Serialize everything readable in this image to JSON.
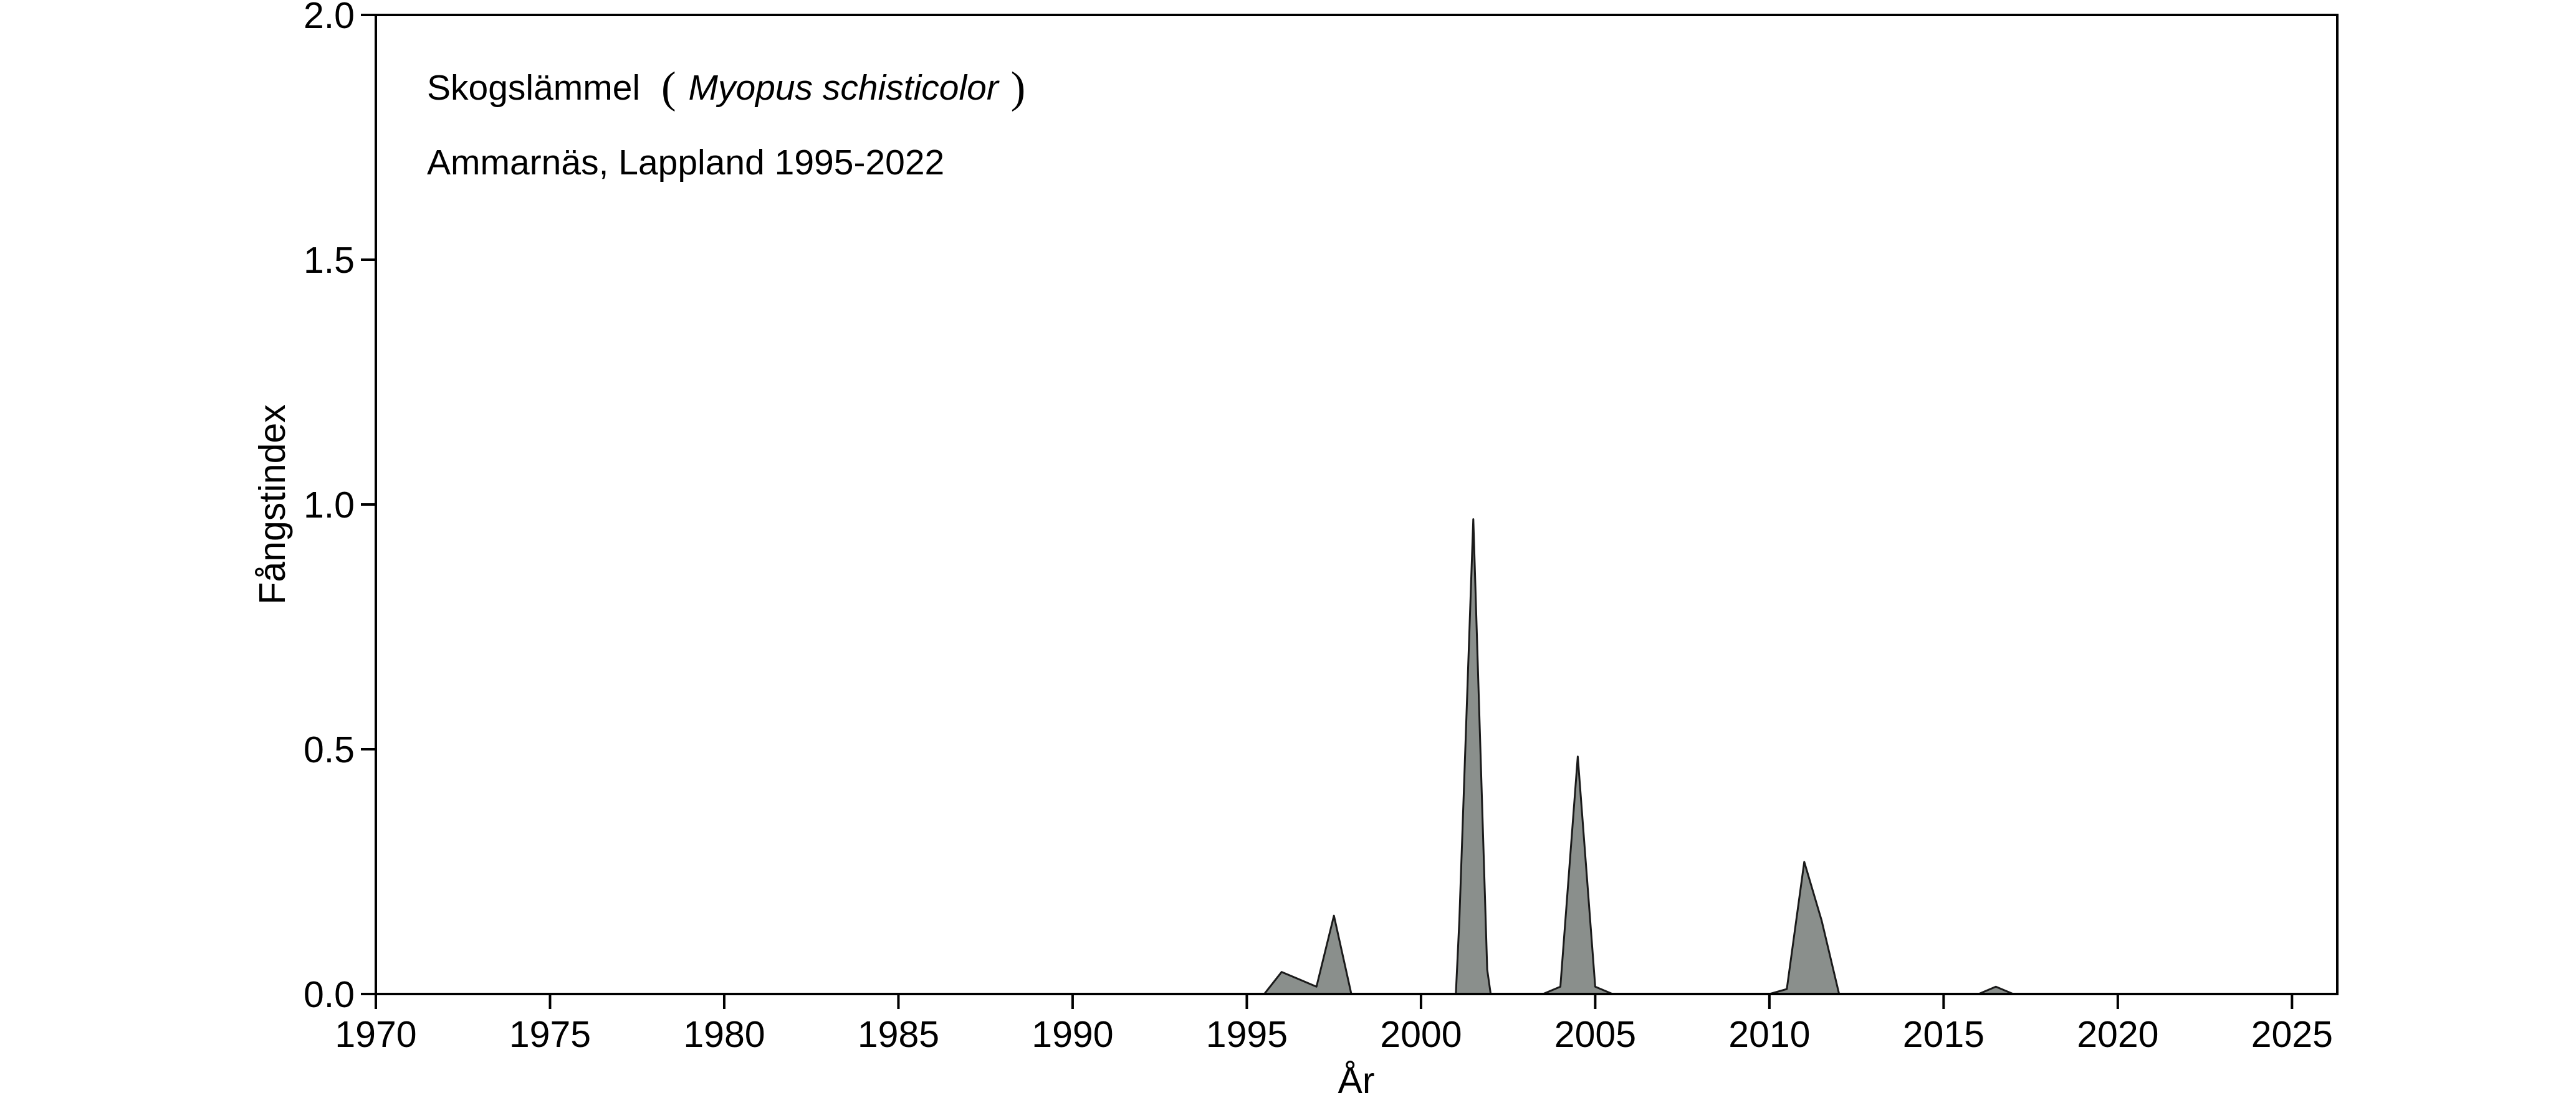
{
  "chart_data": {
    "type": "area",
    "annotation": {
      "species_common": "Skogslämmel",
      "paren_open": "(",
      "species_latin": "Myopus schisticolor",
      "paren_close": ")",
      "location": "Ammarnäs, Lappland 1995-2022"
    },
    "xlabel": "År",
    "ylabel": "Fångstindex",
    "xlim": [
      1970,
      2026.3
    ],
    "ylim": [
      0,
      2.0
    ],
    "x_ticks": [
      1970,
      1975,
      1980,
      1985,
      1990,
      1995,
      2000,
      2005,
      2010,
      2015,
      2020,
      2025
    ],
    "x_tick_labels": [
      "1970",
      "1975",
      "1980",
      "1985",
      "1990",
      "1995",
      "2000",
      "2005",
      "2010",
      "2015",
      "2020",
      "2025"
    ],
    "y_ticks": [
      0,
      0.5,
      1.0,
      1.5,
      2.0
    ],
    "y_tick_labels": [
      "0.0",
      "0.5",
      "1.0",
      "1.5",
      "2.0"
    ],
    "fill_color": "#8a8f8c",
    "line_color": "#1a1a1a",
    "grid": false,
    "x": [
      1995.5,
      1996.0,
      1996.5,
      1997.0,
      1997.5,
      1998.0,
      1998.5,
      1999.0,
      1999.5,
      2000.0,
      2000.5,
      2001.0,
      2001.1,
      2001.5,
      2001.9,
      2002.0,
      2002.5,
      2003.0,
      2003.5,
      2004.0,
      2004.5,
      2005.0,
      2005.5,
      2006.0,
      2006.5,
      2007.0,
      2007.5,
      2008.0,
      2008.5,
      2009.0,
      2009.5,
      2010.0,
      2010.5,
      2011.0,
      2011.5,
      2012.0,
      2012.5,
      2013.0,
      2013.5,
      2014.0,
      2014.5,
      2015.0,
      2015.5,
      2016.0,
      2016.5,
      2017.0,
      2017.5,
      2018.0,
      2018.5,
      2019.0,
      2019.5,
      2020.0,
      2020.5,
      2021.0,
      2021.5,
      2022.0
    ],
    "y": [
      0.0,
      0.045,
      0.03,
      0.015,
      0.16,
      0.0,
      0.0,
      0.0,
      0.0,
      0.0,
      0.0,
      0.0,
      0.15,
      0.97,
      0.05,
      0.0,
      0.0,
      0.0,
      0.0,
      0.015,
      0.485,
      0.015,
      0.0,
      0.0,
      0.0,
      0.0,
      0.0,
      0.0,
      0.0,
      0.0,
      0.0,
      0.0,
      0.01,
      0.27,
      0.15,
      0.0,
      0.0,
      0.0,
      0.0,
      0.0,
      0.0,
      0.0,
      0.0,
      0.0,
      0.015,
      0.0,
      0.0,
      0.0,
      0.0,
      0.0,
      0.0,
      0.0,
      0.0,
      0.0,
      0.0,
      0.0
    ]
  }
}
